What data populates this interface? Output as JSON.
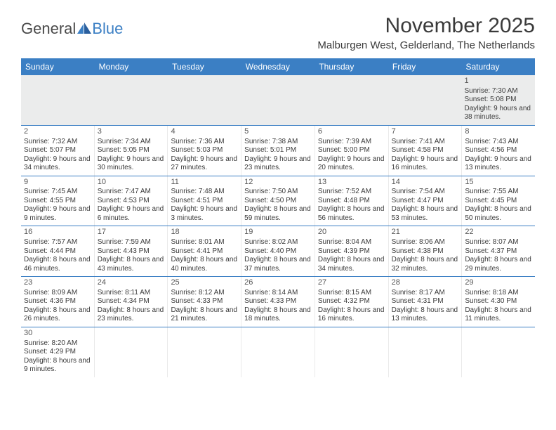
{
  "logo": {
    "text1": "General",
    "text2": "Blue"
  },
  "title": "November 2025",
  "location": "Malburgen West, Gelderland, The Netherlands",
  "colors": {
    "header_bg": "#3b7fc4",
    "header_text": "#ffffff",
    "body_text": "#3a3a3a",
    "row_divider": "#3b7fc4",
    "cell_divider": "#eaeaea",
    "blank_bg": "#ebecec"
  },
  "weekdays": [
    "Sunday",
    "Monday",
    "Tuesday",
    "Wednesday",
    "Thursday",
    "Friday",
    "Saturday"
  ],
  "weeks": [
    [
      {
        "num": "",
        "sunrise": "",
        "sunset": "",
        "daylight": ""
      },
      {
        "num": "",
        "sunrise": "",
        "sunset": "",
        "daylight": ""
      },
      {
        "num": "",
        "sunrise": "",
        "sunset": "",
        "daylight": ""
      },
      {
        "num": "",
        "sunrise": "",
        "sunset": "",
        "daylight": ""
      },
      {
        "num": "",
        "sunrise": "",
        "sunset": "",
        "daylight": ""
      },
      {
        "num": "",
        "sunrise": "",
        "sunset": "",
        "daylight": ""
      },
      {
        "num": "1",
        "sunrise": "Sunrise: 7:30 AM",
        "sunset": "Sunset: 5:08 PM",
        "daylight": "Daylight: 9 hours and 38 minutes."
      }
    ],
    [
      {
        "num": "2",
        "sunrise": "Sunrise: 7:32 AM",
        "sunset": "Sunset: 5:07 PM",
        "daylight": "Daylight: 9 hours and 34 minutes."
      },
      {
        "num": "3",
        "sunrise": "Sunrise: 7:34 AM",
        "sunset": "Sunset: 5:05 PM",
        "daylight": "Daylight: 9 hours and 30 minutes."
      },
      {
        "num": "4",
        "sunrise": "Sunrise: 7:36 AM",
        "sunset": "Sunset: 5:03 PM",
        "daylight": "Daylight: 9 hours and 27 minutes."
      },
      {
        "num": "5",
        "sunrise": "Sunrise: 7:38 AM",
        "sunset": "Sunset: 5:01 PM",
        "daylight": "Daylight: 9 hours and 23 minutes."
      },
      {
        "num": "6",
        "sunrise": "Sunrise: 7:39 AM",
        "sunset": "Sunset: 5:00 PM",
        "daylight": "Daylight: 9 hours and 20 minutes."
      },
      {
        "num": "7",
        "sunrise": "Sunrise: 7:41 AM",
        "sunset": "Sunset: 4:58 PM",
        "daylight": "Daylight: 9 hours and 16 minutes."
      },
      {
        "num": "8",
        "sunrise": "Sunrise: 7:43 AM",
        "sunset": "Sunset: 4:56 PM",
        "daylight": "Daylight: 9 hours and 13 minutes."
      }
    ],
    [
      {
        "num": "9",
        "sunrise": "Sunrise: 7:45 AM",
        "sunset": "Sunset: 4:55 PM",
        "daylight": "Daylight: 9 hours and 9 minutes."
      },
      {
        "num": "10",
        "sunrise": "Sunrise: 7:47 AM",
        "sunset": "Sunset: 4:53 PM",
        "daylight": "Daylight: 9 hours and 6 minutes."
      },
      {
        "num": "11",
        "sunrise": "Sunrise: 7:48 AM",
        "sunset": "Sunset: 4:51 PM",
        "daylight": "Daylight: 9 hours and 3 minutes."
      },
      {
        "num": "12",
        "sunrise": "Sunrise: 7:50 AM",
        "sunset": "Sunset: 4:50 PM",
        "daylight": "Daylight: 8 hours and 59 minutes."
      },
      {
        "num": "13",
        "sunrise": "Sunrise: 7:52 AM",
        "sunset": "Sunset: 4:48 PM",
        "daylight": "Daylight: 8 hours and 56 minutes."
      },
      {
        "num": "14",
        "sunrise": "Sunrise: 7:54 AM",
        "sunset": "Sunset: 4:47 PM",
        "daylight": "Daylight: 8 hours and 53 minutes."
      },
      {
        "num": "15",
        "sunrise": "Sunrise: 7:55 AM",
        "sunset": "Sunset: 4:45 PM",
        "daylight": "Daylight: 8 hours and 50 minutes."
      }
    ],
    [
      {
        "num": "16",
        "sunrise": "Sunrise: 7:57 AM",
        "sunset": "Sunset: 4:44 PM",
        "daylight": "Daylight: 8 hours and 46 minutes."
      },
      {
        "num": "17",
        "sunrise": "Sunrise: 7:59 AM",
        "sunset": "Sunset: 4:43 PM",
        "daylight": "Daylight: 8 hours and 43 minutes."
      },
      {
        "num": "18",
        "sunrise": "Sunrise: 8:01 AM",
        "sunset": "Sunset: 4:41 PM",
        "daylight": "Daylight: 8 hours and 40 minutes."
      },
      {
        "num": "19",
        "sunrise": "Sunrise: 8:02 AM",
        "sunset": "Sunset: 4:40 PM",
        "daylight": "Daylight: 8 hours and 37 minutes."
      },
      {
        "num": "20",
        "sunrise": "Sunrise: 8:04 AM",
        "sunset": "Sunset: 4:39 PM",
        "daylight": "Daylight: 8 hours and 34 minutes."
      },
      {
        "num": "21",
        "sunrise": "Sunrise: 8:06 AM",
        "sunset": "Sunset: 4:38 PM",
        "daylight": "Daylight: 8 hours and 32 minutes."
      },
      {
        "num": "22",
        "sunrise": "Sunrise: 8:07 AM",
        "sunset": "Sunset: 4:37 PM",
        "daylight": "Daylight: 8 hours and 29 minutes."
      }
    ],
    [
      {
        "num": "23",
        "sunrise": "Sunrise: 8:09 AM",
        "sunset": "Sunset: 4:36 PM",
        "daylight": "Daylight: 8 hours and 26 minutes."
      },
      {
        "num": "24",
        "sunrise": "Sunrise: 8:11 AM",
        "sunset": "Sunset: 4:34 PM",
        "daylight": "Daylight: 8 hours and 23 minutes."
      },
      {
        "num": "25",
        "sunrise": "Sunrise: 8:12 AM",
        "sunset": "Sunset: 4:33 PM",
        "daylight": "Daylight: 8 hours and 21 minutes."
      },
      {
        "num": "26",
        "sunrise": "Sunrise: 8:14 AM",
        "sunset": "Sunset: 4:33 PM",
        "daylight": "Daylight: 8 hours and 18 minutes."
      },
      {
        "num": "27",
        "sunrise": "Sunrise: 8:15 AM",
        "sunset": "Sunset: 4:32 PM",
        "daylight": "Daylight: 8 hours and 16 minutes."
      },
      {
        "num": "28",
        "sunrise": "Sunrise: 8:17 AM",
        "sunset": "Sunset: 4:31 PM",
        "daylight": "Daylight: 8 hours and 13 minutes."
      },
      {
        "num": "29",
        "sunrise": "Sunrise: 8:18 AM",
        "sunset": "Sunset: 4:30 PM",
        "daylight": "Daylight: 8 hours and 11 minutes."
      }
    ],
    [
      {
        "num": "30",
        "sunrise": "Sunrise: 8:20 AM",
        "sunset": "Sunset: 4:29 PM",
        "daylight": "Daylight: 8 hours and 9 minutes."
      },
      {
        "num": "",
        "sunrise": "",
        "sunset": "",
        "daylight": ""
      },
      {
        "num": "",
        "sunrise": "",
        "sunset": "",
        "daylight": ""
      },
      {
        "num": "",
        "sunrise": "",
        "sunset": "",
        "daylight": ""
      },
      {
        "num": "",
        "sunrise": "",
        "sunset": "",
        "daylight": ""
      },
      {
        "num": "",
        "sunrise": "",
        "sunset": "",
        "daylight": ""
      },
      {
        "num": "",
        "sunrise": "",
        "sunset": "",
        "daylight": ""
      }
    ]
  ]
}
